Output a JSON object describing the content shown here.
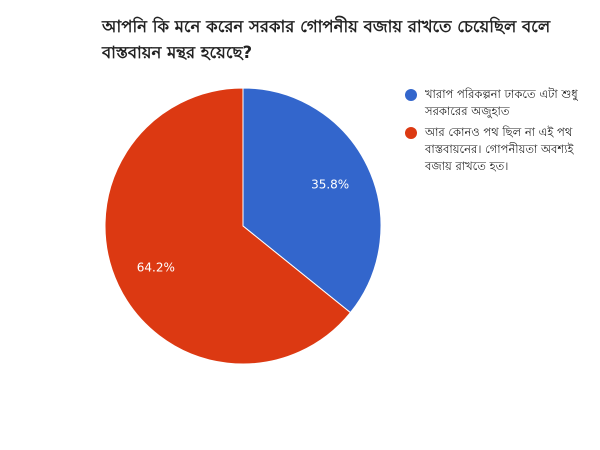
{
  "chart_data": {
    "type": "pie",
    "title": "আপনি কি মনে করেন সরকার গোপনীয় বজায় রাখতে চেয়েছিল বলে বাস্তবায়ন মন্থর হয়েছে?",
    "slices": [
      {
        "label": "খারাপ পরিকল্পনা ঢাকতে এটা শুধু সরকারের অজুহাত",
        "value": 35.8,
        "value_label": "35.8%",
        "color": "#3366cc"
      },
      {
        "label": "আর কোনও পথ ছিল না এই পথ বাস্তবায়নের। গোপনীয়তা অবশ্যই বজায় রাখতে হত।",
        "value": 64.2,
        "value_label": "64.2%",
        "color": "#dc3912"
      }
    ],
    "legend_position": "right"
  }
}
